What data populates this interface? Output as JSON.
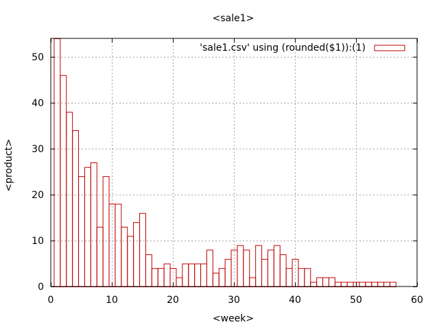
{
  "chart_data": {
    "type": "bar",
    "title": "<sale1>",
    "xlabel": "<week>",
    "ylabel": "<product>",
    "xlim": [
      0,
      60
    ],
    "ylim": [
      0,
      54
    ],
    "xticks": [
      0,
      10,
      20,
      30,
      40,
      50,
      60
    ],
    "yticks": [
      0,
      10,
      20,
      30,
      40,
      50
    ],
    "grid": true,
    "legend_position": "top-right",
    "series": [
      {
        "name": "'sale1.csv' using (rounded($1)):(1)",
        "color": "#c00000",
        "x": [
          1,
          2,
          3,
          4,
          5,
          6,
          7,
          8,
          9,
          10,
          11,
          12,
          13,
          14,
          15,
          16,
          17,
          18,
          19,
          20,
          21,
          22,
          23,
          24,
          25,
          26,
          27,
          28,
          29,
          30,
          31,
          32,
          33,
          34,
          35,
          36,
          37,
          38,
          39,
          40,
          41,
          42,
          43,
          44,
          45,
          46,
          47,
          48,
          49,
          50,
          51,
          52,
          53,
          54,
          55,
          56
        ],
        "values": [
          54,
          46,
          38,
          34,
          24,
          26,
          27,
          13,
          24,
          18,
          18,
          13,
          11,
          14,
          16,
          7,
          4,
          4,
          5,
          4,
          2,
          5,
          5,
          5,
          5,
          8,
          3,
          4,
          6,
          8,
          9,
          8,
          2,
          9,
          6,
          8,
          9,
          7,
          4,
          6,
          4,
          4,
          1,
          2,
          2,
          2,
          1,
          1,
          1,
          1,
          1,
          1,
          1,
          1,
          1,
          1
        ]
      }
    ]
  }
}
